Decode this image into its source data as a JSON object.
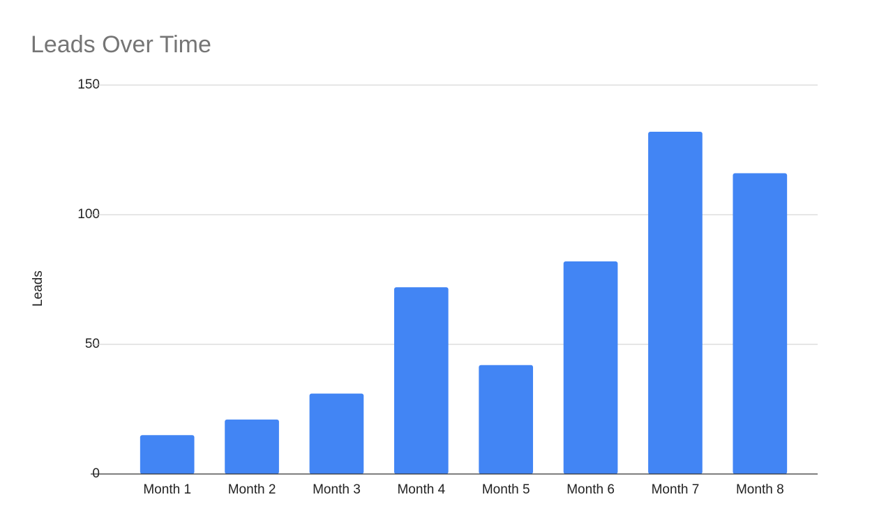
{
  "chart_data": {
    "type": "bar",
    "title": "Leads Over Time",
    "y_label": "Leads",
    "categories": [
      "Month 1",
      "Month 2",
      "Month 3",
      "Month 4",
      "Month 5",
      "Month 6",
      "Month 7",
      "Month 8"
    ],
    "values": [
      15,
      21,
      31,
      72,
      42,
      82,
      132,
      116
    ],
    "color": "#4285f4",
    "ylim": [
      0,
      150
    ],
    "yticks": [
      0,
      50,
      100,
      150
    ],
    "grid": true
  }
}
